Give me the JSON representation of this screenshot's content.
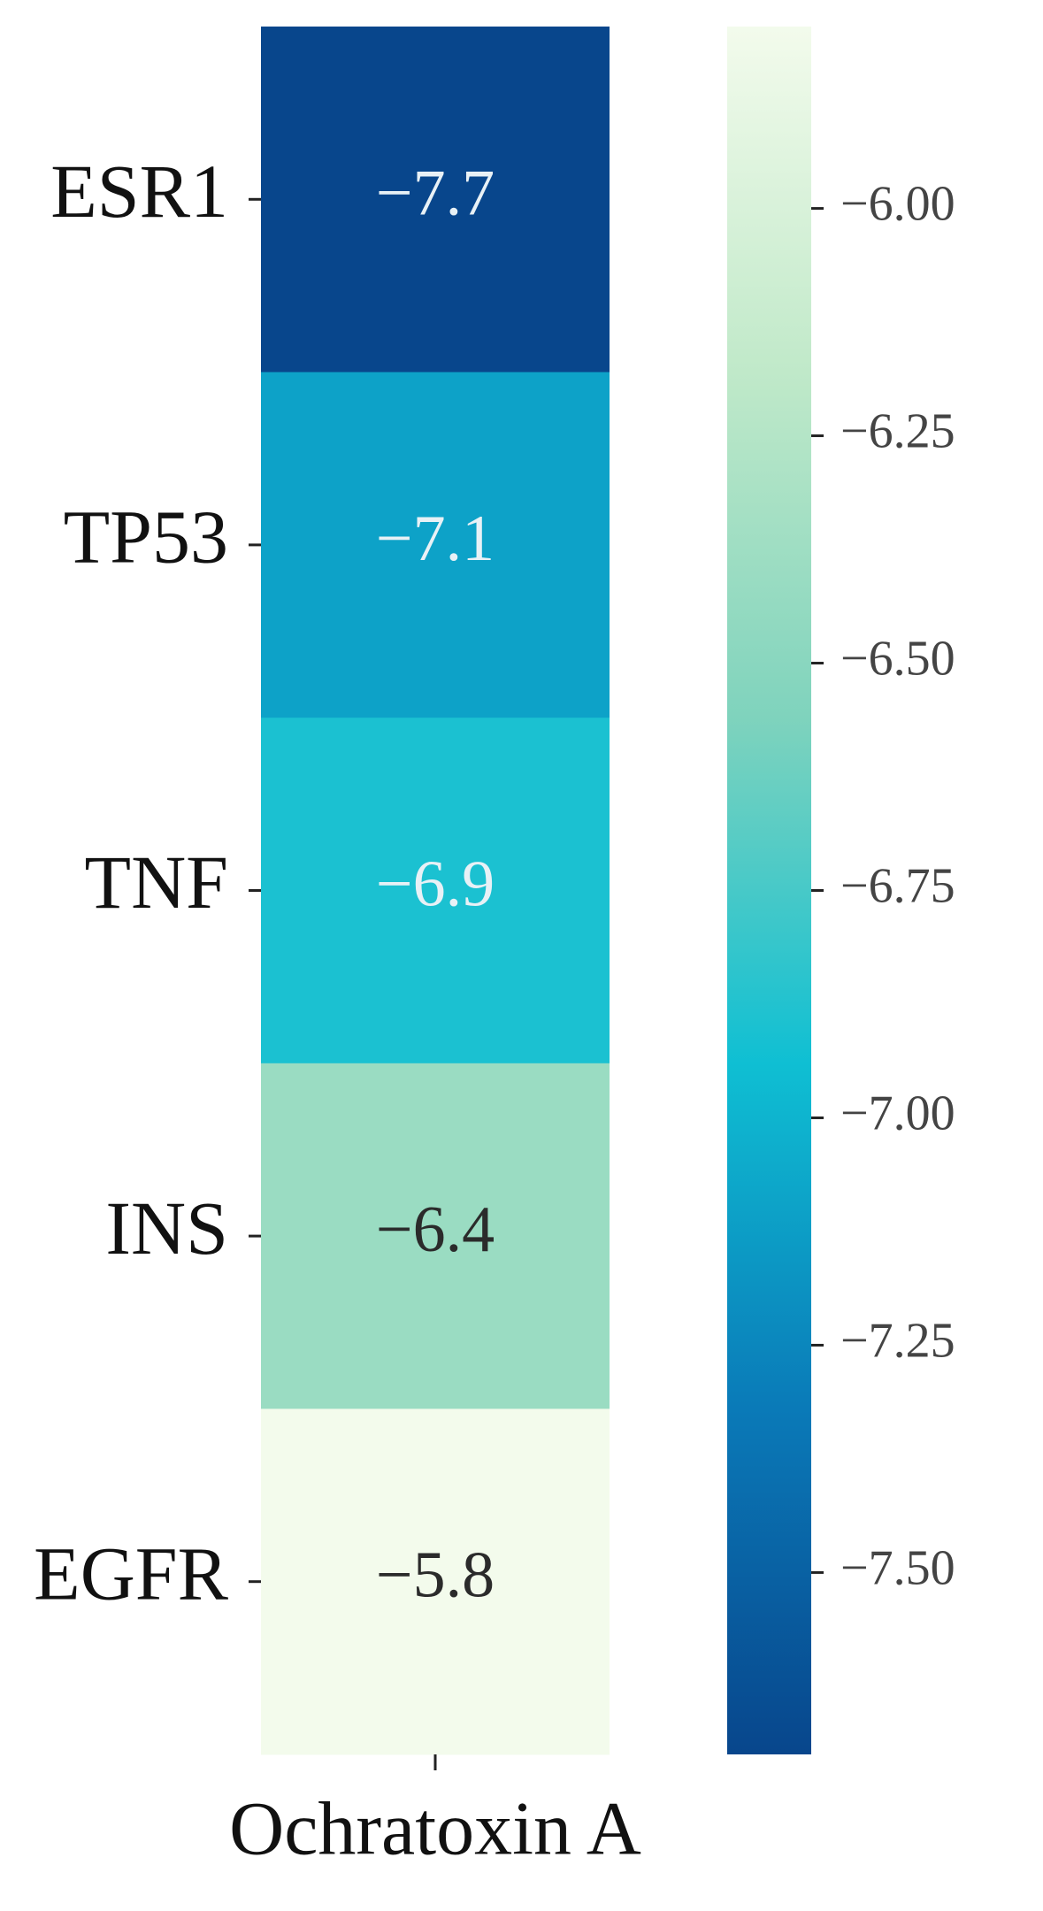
{
  "chart_data": {
    "type": "heatmap",
    "categories": [
      "ESR1",
      "TP53",
      "TNF",
      "INS",
      "EGFR"
    ],
    "columns": [
      "Ochratoxin A"
    ],
    "values": [
      -7.7,
      -7.1,
      -6.9,
      -6.4,
      -5.8
    ],
    "value_labels": [
      "−7.7",
      "−7.1",
      "−6.9",
      "−6.4",
      "−5.8"
    ],
    "colorbar_colors": [
      "#08468c",
      "#0a7ab8",
      "#0fbfd3",
      "#7fd3bd",
      "#c0e9c9",
      "#f3fbec"
    ],
    "clim": [
      -7.7,
      -5.8
    ],
    "cticks": [
      {
        "value": -6,
        "label": "−6.00"
      },
      {
        "value": -6.25,
        "label": "−6.25"
      },
      {
        "value": -6.5,
        "label": "−6.50"
      },
      {
        "value": -6.75,
        "label": "−6.75"
      },
      {
        "value": -7,
        "label": "−7.00"
      },
      {
        "value": -7.25,
        "label": "−7.25"
      },
      {
        "value": -7.5,
        "label": "−7.50"
      }
    ]
  }
}
